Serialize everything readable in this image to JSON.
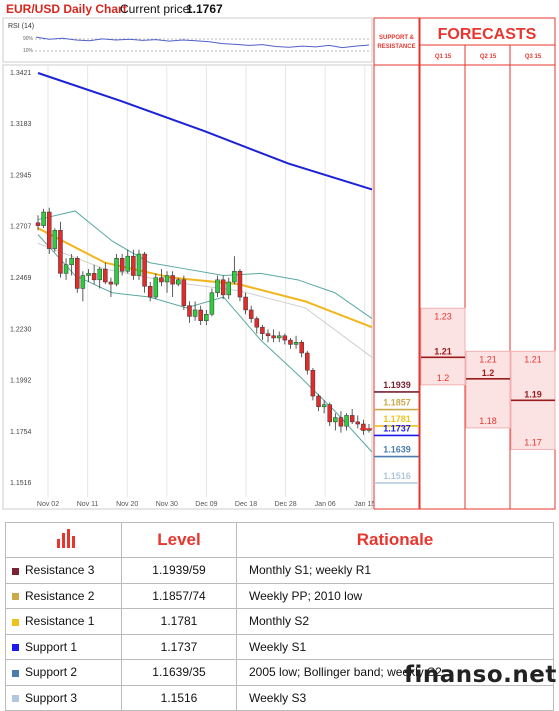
{
  "header": {
    "title": "EUR/USD Daily Chart",
    "current_price_label": "Current price:",
    "current_price": "1.1767"
  },
  "rsi_label": "RSI (14)",
  "rsi_scale": [
    "90%",
    "10%"
  ],
  "chart_data": {
    "type": "candlestick",
    "title": "EUR/USD Daily Chart",
    "y_ticks": [
      "1.3421",
      "1.3183",
      "1.2945",
      "1.2707",
      "1.2469",
      "1.2230",
      "1.1992",
      "1.1754",
      "1.1516"
    ],
    "ylim": [
      1.141,
      1.344
    ],
    "x_ticks": [
      "Nov 02",
      "Nov 11",
      "Nov 20",
      "Nov 30",
      "Dec 09",
      "Dec 18",
      "Dec 28",
      "Jan 06",
      "Jan 15"
    ],
    "candles": [
      {
        "o": 1.2725,
        "h": 1.276,
        "l": 1.269,
        "c": 1.2712
      },
      {
        "o": 1.2712,
        "h": 1.279,
        "l": 1.27,
        "c": 1.2775
      },
      {
        "o": 1.2775,
        "h": 1.2795,
        "l": 1.258,
        "c": 1.2605
      },
      {
        "o": 1.2605,
        "h": 1.27,
        "l": 1.259,
        "c": 1.269
      },
      {
        "o": 1.269,
        "h": 1.273,
        "l": 1.247,
        "c": 1.249
      },
      {
        "o": 1.249,
        "h": 1.256,
        "l": 1.246,
        "c": 1.253
      },
      {
        "o": 1.253,
        "h": 1.258,
        "l": 1.248,
        "c": 1.256
      },
      {
        "o": 1.256,
        "h": 1.257,
        "l": 1.24,
        "c": 1.242
      },
      {
        "o": 1.242,
        "h": 1.25,
        "l": 1.236,
        "c": 1.248
      },
      {
        "o": 1.248,
        "h": 1.251,
        "l": 1.245,
        "c": 1.249
      },
      {
        "o": 1.249,
        "h": 1.253,
        "l": 1.244,
        "c": 1.246
      },
      {
        "o": 1.246,
        "h": 1.252,
        "l": 1.242,
        "c": 1.251
      },
      {
        "o": 1.251,
        "h": 1.254,
        "l": 1.244,
        "c": 1.245
      },
      {
        "o": 1.245,
        "h": 1.247,
        "l": 1.238,
        "c": 1.244
      },
      {
        "o": 1.244,
        "h": 1.258,
        "l": 1.243,
        "c": 1.256
      },
      {
        "o": 1.256,
        "h": 1.258,
        "l": 1.248,
        "c": 1.25
      },
      {
        "o": 1.25,
        "h": 1.26,
        "l": 1.249,
        "c": 1.257
      },
      {
        "o": 1.257,
        "h": 1.26,
        "l": 1.246,
        "c": 1.248
      },
      {
        "o": 1.248,
        "h": 1.26,
        "l": 1.246,
        "c": 1.258
      },
      {
        "o": 1.258,
        "h": 1.259,
        "l": 1.24,
        "c": 1.243
      },
      {
        "o": 1.243,
        "h": 1.245,
        "l": 1.236,
        "c": 1.238
      },
      {
        "o": 1.238,
        "h": 1.249,
        "l": 1.237,
        "c": 1.247
      },
      {
        "o": 1.247,
        "h": 1.251,
        "l": 1.243,
        "c": 1.245
      },
      {
        "o": 1.245,
        "h": 1.25,
        "l": 1.24,
        "c": 1.248
      },
      {
        "o": 1.248,
        "h": 1.25,
        "l": 1.238,
        "c": 1.244
      },
      {
        "o": 1.244,
        "h": 1.247,
        "l": 1.243,
        "c": 1.246
      },
      {
        "o": 1.246,
        "h": 1.248,
        "l": 1.232,
        "c": 1.234
      },
      {
        "o": 1.234,
        "h": 1.236,
        "l": 1.226,
        "c": 1.229
      },
      {
        "o": 1.229,
        "h": 1.236,
        "l": 1.227,
        "c": 1.232
      },
      {
        "o": 1.232,
        "h": 1.234,
        "l": 1.225,
        "c": 1.227
      },
      {
        "o": 1.227,
        "h": 1.232,
        "l": 1.225,
        "c": 1.23
      },
      {
        "o": 1.23,
        "h": 1.242,
        "l": 1.229,
        "c": 1.24
      },
      {
        "o": 1.24,
        "h": 1.248,
        "l": 1.238,
        "c": 1.246
      },
      {
        "o": 1.246,
        "h": 1.248,
        "l": 1.237,
        "c": 1.239
      },
      {
        "o": 1.239,
        "h": 1.247,
        "l": 1.237,
        "c": 1.245
      },
      {
        "o": 1.245,
        "h": 1.257,
        "l": 1.244,
        "c": 1.25
      },
      {
        "o": 1.25,
        "h": 1.251,
        "l": 1.236,
        "c": 1.238
      },
      {
        "o": 1.238,
        "h": 1.24,
        "l": 1.23,
        "c": 1.232
      },
      {
        "o": 1.232,
        "h": 1.234,
        "l": 1.226,
        "c": 1.228
      },
      {
        "o": 1.228,
        "h": 1.229,
        "l": 1.221,
        "c": 1.224
      },
      {
        "o": 1.224,
        "h": 1.225,
        "l": 1.218,
        "c": 1.221
      },
      {
        "o": 1.221,
        "h": 1.223,
        "l": 1.217,
        "c": 1.22
      },
      {
        "o": 1.22,
        "h": 1.223,
        "l": 1.217,
        "c": 1.219
      },
      {
        "o": 1.219,
        "h": 1.222,
        "l": 1.217,
        "c": 1.22
      },
      {
        "o": 1.22,
        "h": 1.221,
        "l": 1.216,
        "c": 1.218
      },
      {
        "o": 1.218,
        "h": 1.219,
        "l": 1.214,
        "c": 1.216
      },
      {
        "o": 1.216,
        "h": 1.22,
        "l": 1.214,
        "c": 1.217
      },
      {
        "o": 1.217,
        "h": 1.218,
        "l": 1.21,
        "c": 1.212
      },
      {
        "o": 1.212,
        "h": 1.213,
        "l": 1.202,
        "c": 1.204
      },
      {
        "o": 1.204,
        "h": 1.205,
        "l": 1.19,
        "c": 1.192
      },
      {
        "o": 1.192,
        "h": 1.193,
        "l": 1.185,
        "c": 1.187
      },
      {
        "o": 1.187,
        "h": 1.19,
        "l": 1.184,
        "c": 1.188
      },
      {
        "o": 1.188,
        "h": 1.189,
        "l": 1.178,
        "c": 1.18
      },
      {
        "o": 1.18,
        "h": 1.184,
        "l": 1.176,
        "c": 1.182
      },
      {
        "o": 1.182,
        "h": 1.185,
        "l": 1.175,
        "c": 1.178
      },
      {
        "o": 1.178,
        "h": 1.184,
        "l": 1.176,
        "c": 1.183
      },
      {
        "o": 1.183,
        "h": 1.186,
        "l": 1.179,
        "c": 1.18
      },
      {
        "o": 1.18,
        "h": 1.183,
        "l": 1.177,
        "c": 1.179
      },
      {
        "o": 1.179,
        "h": 1.181,
        "l": 1.174,
        "c": 1.176
      },
      {
        "o": 1.176,
        "h": 1.179,
        "l": 1.175,
        "c": 1.1767
      }
    ],
    "sma_200": [
      1.3421,
      1.329,
      1.315,
      1.3,
      1.288
    ],
    "sma_50": [
      1.27,
      1.254,
      1.247,
      1.244,
      1.236,
      1.224
    ],
    "sma_grey": [
      1.263,
      1.251,
      1.245,
      1.241,
      1.233,
      1.21
    ],
    "bollinger_upper": [
      1.274,
      1.278,
      1.264,
      1.254,
      1.251,
      1.248,
      1.249,
      1.246,
      1.24,
      1.228
    ],
    "bollinger_lower": [
      1.267,
      1.248,
      1.24,
      1.238,
      1.233,
      1.238,
      1.218,
      1.202,
      1.185,
      1.166
    ],
    "rsi_values": [
      58,
      52,
      55,
      50,
      48,
      53,
      50,
      52,
      49,
      51,
      47,
      50,
      48,
      45,
      40,
      38,
      35,
      37,
      32,
      30,
      33,
      31,
      35,
      29,
      33,
      36
    ]
  },
  "support_resistance": {
    "header": "SUPPORT & RESISTANCE",
    "levels": [
      {
        "value": "1.1939",
        "color": "#7a2133"
      },
      {
        "value": "1.1857",
        "color": "#c9a94c"
      },
      {
        "value": "1.1781",
        "color": "#eec21a"
      },
      {
        "value": "1.1737",
        "color": "#1a1aee"
      },
      {
        "value": "1.1639",
        "color": "#4a7dad"
      },
      {
        "value": "1.1516",
        "color": "#b2c7dd"
      }
    ]
  },
  "forecasts": {
    "title": "FORECASTS",
    "columns": [
      {
        "label": "Q1 15",
        "values": [
          "1.23",
          "1.21",
          "1.2"
        ],
        "highlight": "1.21"
      },
      {
        "label": "Q2 15",
        "values": [
          "1.21",
          "1.2",
          "1.18"
        ],
        "highlight": "1.2"
      },
      {
        "label": "Q3 15",
        "values": [
          "1.21",
          "1.19",
          "1.17"
        ],
        "highlight": "1.19"
      }
    ]
  },
  "levels_table": {
    "col_level": "Level",
    "col_rationale": "Rationale",
    "rows": [
      {
        "name": "Resistance 3",
        "level": "1.1939/59",
        "rationale": "Monthly S1; weekly R1",
        "color": "#7a2133"
      },
      {
        "name": "Resistance 2",
        "level": "1.1857/74",
        "rationale": "Weekly PP; 2010 low",
        "color": "#c9a94c"
      },
      {
        "name": "Resistance 1",
        "level": "1.1781",
        "rationale": "Monthly S2",
        "color": "#eec21a"
      },
      {
        "name": "Support 1",
        "level": "1.1737",
        "rationale": "Weekly S1",
        "color": "#1a1aee"
      },
      {
        "name": "Support 2",
        "level": "1.1639/35",
        "rationale": "2005 low; Bollinger band; weekly S2",
        "color": "#4a7dad"
      },
      {
        "name": "Support 3",
        "level": "1.1516",
        "rationale": "Weekly S3",
        "color": "#b2c7dd"
      }
    ]
  },
  "watermark": "finanso.net",
  "colors": {
    "up_candle": "#2ecc40",
    "down_candle": "#e32b2b",
    "sma_200": "#1c22d6",
    "sma_50": "#f2b51b",
    "bollinger": "#5aa8a3",
    "forecast_red": "#e8362e",
    "title_red": "#e8362e"
  }
}
